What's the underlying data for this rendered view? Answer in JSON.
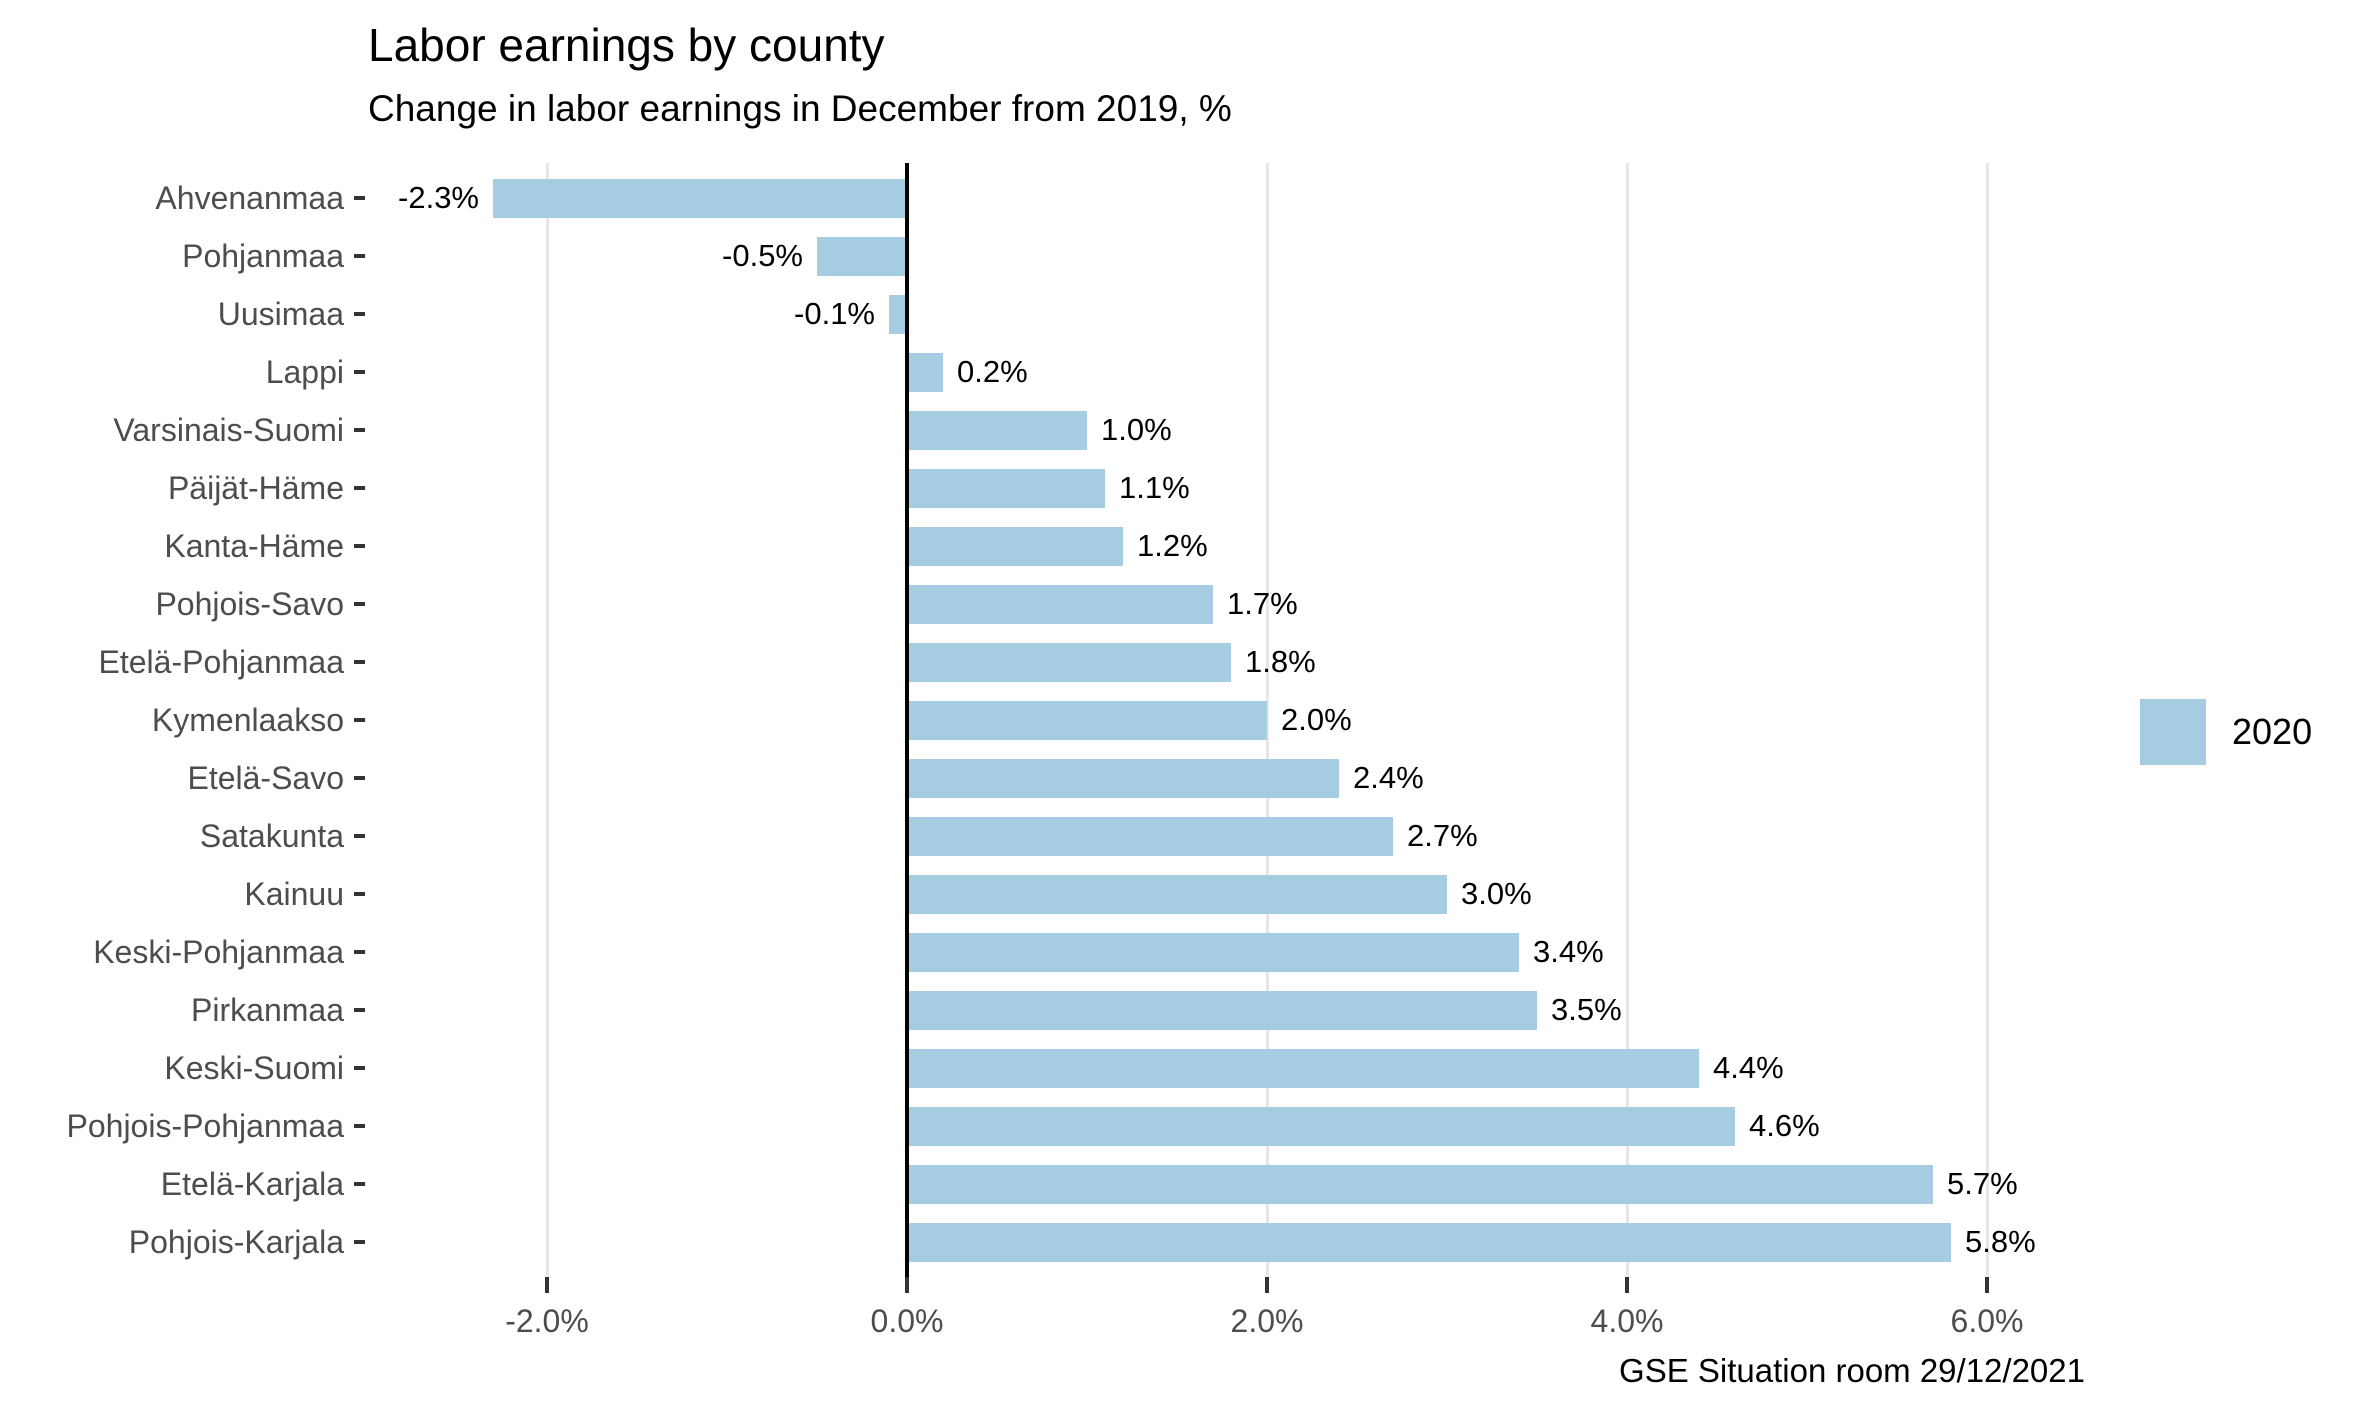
{
  "title": "Labor earnings by county",
  "subtitle": "Change in labor earnings in December from 2019, %",
  "caption": "GSE Situation room 29/12/2021",
  "legend": {
    "label": "2020",
    "color": "#a6cce1"
  },
  "colors": {
    "bar": "#a6cce1",
    "gridline": "#e7e7e7",
    "axis_text": "#4d4d4d",
    "zero_line": "#000000"
  },
  "x_axis": {
    "tick_values": [
      -2,
      0,
      2,
      4,
      6
    ],
    "tick_labels": [
      "-2.0%",
      "0.0%",
      "2.0%",
      "4.0%",
      "6.0%"
    ]
  },
  "chart_data": {
    "type": "bar",
    "orientation": "horizontal",
    "title": "Labor earnings by county",
    "subtitle": "Change in labor earnings in December from 2019, %",
    "series_name": "2020",
    "categories": [
      "Ahvenanmaa",
      "Pohjanmaa",
      "Uusimaa",
      "Lappi",
      "Varsinais-Suomi",
      "Päijät-Häme",
      "Kanta-Häme",
      "Pohjois-Savo",
      "Etelä-Pohjanmaa",
      "Kymenlaakso",
      "Etelä-Savo",
      "Satakunta",
      "Kainuu",
      "Keski-Pohjanmaa",
      "Pirkanmaa",
      "Keski-Suomi",
      "Pohjois-Pohjanmaa",
      "Etelä-Karjala",
      "Pohjois-Karjala"
    ],
    "values": [
      -2.3,
      -0.5,
      -0.1,
      0.2,
      1.0,
      1.1,
      1.2,
      1.7,
      1.8,
      2.0,
      2.4,
      2.7,
      3.0,
      3.4,
      3.5,
      4.4,
      4.6,
      5.7,
      5.8
    ],
    "value_labels": [
      "-2.3%",
      "-0.5%",
      "-0.1%",
      "0.2%",
      "1.0%",
      "1.1%",
      "1.2%",
      "1.7%",
      "1.8%",
      "2.0%",
      "2.4%",
      "2.7%",
      "3.0%",
      "3.4%",
      "3.5%",
      "4.4%",
      "4.6%",
      "5.7%",
      "5.8%"
    ],
    "xlim": [
      -2.9,
      6.6
    ],
    "grid": "vertical",
    "legend_position": "right"
  }
}
